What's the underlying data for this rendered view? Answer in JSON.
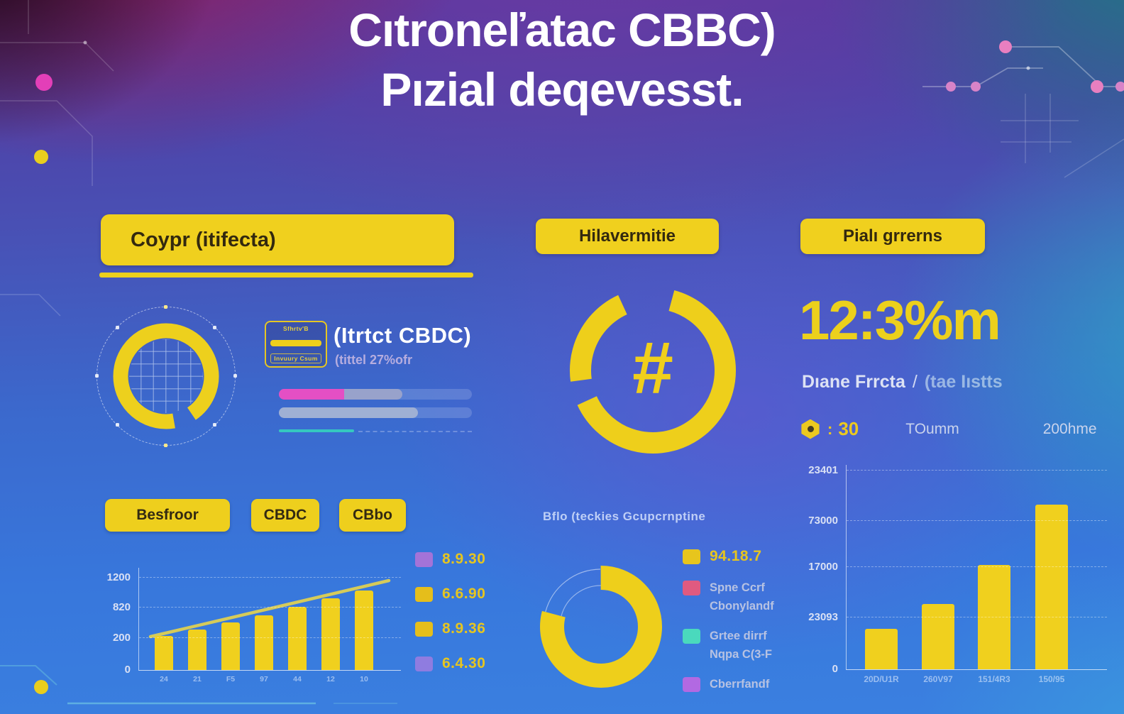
{
  "colors": {
    "yellow": "#f0d01e",
    "ring_yellow": "#eecf1b",
    "pink_dot": "#e33fb8",
    "pink_node": "#e87fc0",
    "bg_blue": "#3a77dc"
  },
  "title": {
    "line1": "Cıtroneľatac CBBC)",
    "line2": "Pızial deqevesst."
  },
  "left_panel": {
    "header": "Coypr (itifecta)",
    "badge": {
      "line1": "Sfhrtv'B",
      "line2": "Invuury Csum"
    },
    "stat_title": "(Itrtct CBDC)",
    "stat_sub": "(tittel 27%ofr",
    "buttons": [
      {
        "label": "Besfroor"
      },
      {
        "label": "CBDC"
      },
      {
        "label": "CBbo"
      }
    ]
  },
  "mid_panel": {
    "header": "Hilavermitie",
    "donut_symbol": "#",
    "bottom_title": "Bflo (teckies Gcupcrnptine"
  },
  "right_panel": {
    "header": "Pialı grrerns",
    "big_stat": "12:3%m",
    "stat_line": {
      "left": "Dıane Frrcta",
      "sep": "/",
      "right": "(tae Iıstts"
    },
    "meta_row": {
      "colon": ":",
      "value": "30",
      "label1": "TOumm",
      "label2": "200hme"
    }
  },
  "chart_data": [
    {
      "id": "left_bar_chart",
      "type": "bar",
      "title": "",
      "xlabel": "",
      "ylabel": "",
      "categories": [
        "24",
        "21",
        "F5",
        "97",
        "44",
        "12",
        "10"
      ],
      "values": [
        440,
        525,
        620,
        710,
        820,
        930,
        1035
      ],
      "ylim": [
        0,
        1200
      ],
      "ytick_labels": [
        "0",
        "200",
        "820",
        "1200"
      ],
      "grid": true,
      "bar_color": "#f0d01e",
      "trendline": {
        "start_value": 460,
        "end_value": 1160,
        "color": "#e6d44c"
      },
      "legend_position": "right",
      "legend": [
        {
          "swatch": "#a473d8",
          "label": "8.9.30",
          "em": true
        },
        {
          "swatch": "#e5be1b",
          "label": "6.6.90",
          "em": true
        },
        {
          "swatch": "#e5be1b",
          "label": "8.9.36",
          "em": true
        },
        {
          "swatch": "#8f7ce0",
          "label": "6.4.30",
          "em": true
        }
      ]
    },
    {
      "id": "middle_bottom_donut",
      "type": "pie",
      "title": "Bflo (teckies Gcupcrnptine",
      "slices": [
        {
          "label": "94.18.7",
          "value": 79,
          "color": "#eecf1b"
        },
        {
          "label": "gap",
          "value": 21,
          "color": "none"
        }
      ],
      "legend_position": "right",
      "legend": [
        {
          "swatch": "#e7c51d",
          "label": "94.18.7",
          "em": true
        },
        {
          "swatch": "#e05a80",
          "label": "Spne Ccrf",
          "line2": "Cbonylandf"
        },
        {
          "swatch": "#4ad9bd",
          "label": "Grtee dirrf",
          "line2": "Nqpa C(3-F"
        },
        {
          "swatch": "#b269e2",
          "label": "Cberrfandf"
        }
      ]
    },
    {
      "id": "right_bar_chart",
      "type": "bar",
      "title": "",
      "xlabel": "",
      "ylabel": "",
      "categories": [
        "20D/U1R",
        "260V97",
        "151/4R3",
        "150/95"
      ],
      "values": [
        19800,
        32000,
        50700,
        80300
      ],
      "ylim": [
        0,
        100000
      ],
      "ytick_labels": [
        "0",
        "23093",
        "17000",
        "73000",
        "23401"
      ],
      "grid": true,
      "bar_color": "#f0d01e"
    },
    {
      "id": "progress_bars",
      "type": "bar",
      "bars": [
        {
          "segments": [
            {
              "color": "#e44fc4",
              "pct": 34
            },
            {
              "color": "#98a2cb",
              "pct": 30
            }
          ],
          "track": true
        },
        {
          "segments": [
            {
              "color": "#9fb0d4",
              "pct": 72
            }
          ],
          "track": true
        },
        {
          "segments": [
            {
              "color": "#35c8c0",
              "pct": 39
            }
          ],
          "style": "thin",
          "track": false
        }
      ]
    },
    {
      "id": "left_grid_ring",
      "type": "pie",
      "slices": [
        {
          "value": 93,
          "color": "#edd01d"
        },
        {
          "value": 7,
          "color": "none"
        }
      ]
    },
    {
      "id": "hash_ring",
      "type": "pie",
      "center_symbol": "#",
      "slices": [
        {
          "value": 64,
          "color": "#eecf1b"
        },
        {
          "value": 5,
          "color": "none"
        },
        {
          "value": 20,
          "color": "#eecf1b"
        },
        {
          "value": 11,
          "color": "none"
        }
      ]
    }
  ]
}
